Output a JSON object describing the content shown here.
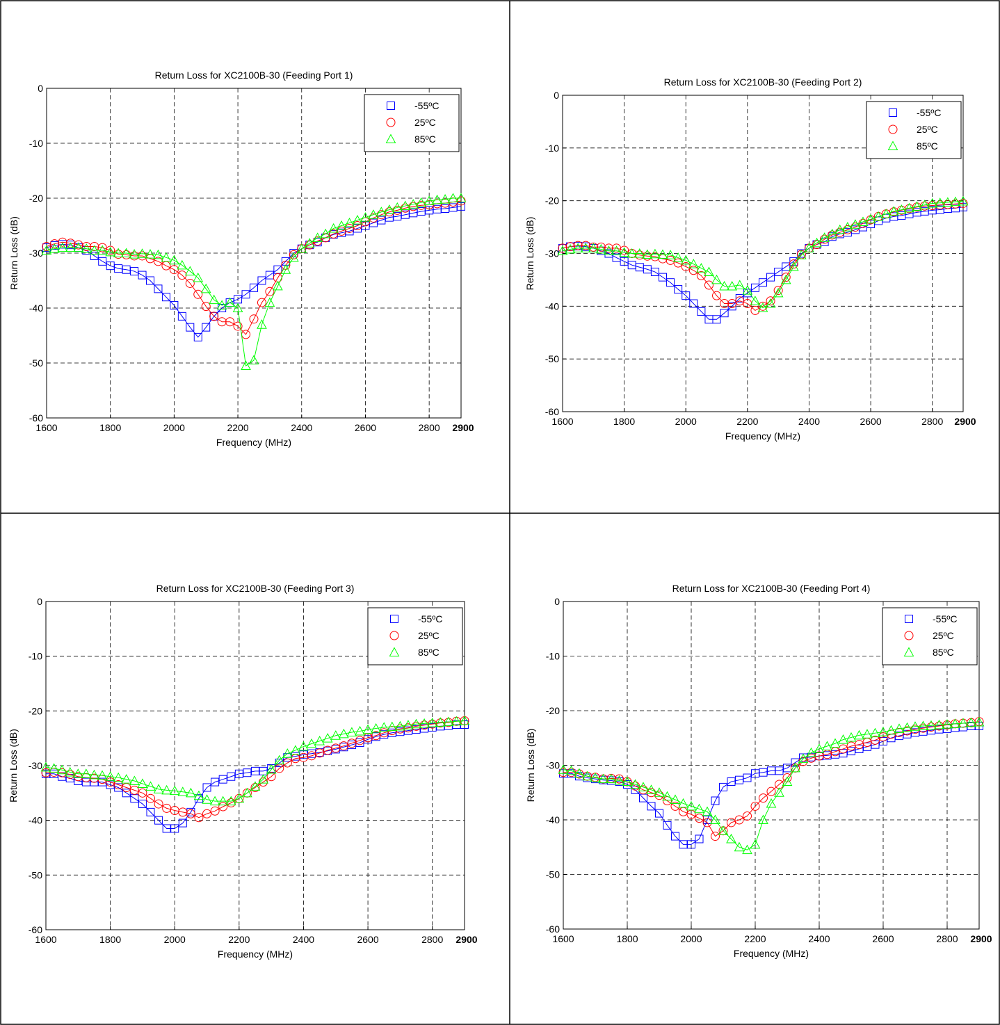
{
  "colors": {
    "series_neg55": "#0000ff",
    "series_25": "#ff0000",
    "series_85": "#00ff00",
    "grid": "#000000"
  },
  "chart_data": [
    {
      "type": "line",
      "title": "Return Loss for XC2100B-30 (Feeding Port 1)",
      "xlabel": "Frequency (MHz)",
      "ylabel": "Return Loss (dB)",
      "xlim": [
        1600,
        2900
      ],
      "ylim": [
        -60,
        0
      ],
      "xticks": [
        "1600",
        "1800",
        "2000",
        "2200",
        "2400",
        "2600",
        "2800",
        "2900"
      ],
      "yticks": [
        "0",
        "-10",
        "-20",
        "-30",
        "-40",
        "-50",
        "-60"
      ],
      "grid": true,
      "legend": "top-right",
      "x": [
        1600,
        1625,
        1650,
        1675,
        1700,
        1725,
        1750,
        1775,
        1800,
        1825,
        1850,
        1875,
        1900,
        1925,
        1950,
        1975,
        2000,
        2025,
        2050,
        2075,
        2100,
        2125,
        2150,
        2175,
        2200,
        2225,
        2250,
        2275,
        2300,
        2325,
        2350,
        2375,
        2400,
        2425,
        2450,
        2475,
        2500,
        2525,
        2550,
        2575,
        2600,
        2625,
        2650,
        2675,
        2700,
        2725,
        2750,
        2775,
        2800,
        2825,
        2850,
        2875,
        2900
      ],
      "series": [
        {
          "name": "-55ºC",
          "marker": "square",
          "color": "#0000ff",
          "values": [
            -29,
            -28.6,
            -28.4,
            -28.5,
            -29,
            -29.5,
            -30.5,
            -31.5,
            -32.3,
            -32.8,
            -33,
            -33.3,
            -34,
            -35,
            -36.5,
            -38,
            -39.5,
            -41.5,
            -43.5,
            -45.3,
            -43.5,
            -41.5,
            -40,
            -39,
            -38.4,
            -37.5,
            -36.3,
            -35,
            -34,
            -33,
            -31.5,
            -30,
            -29.2,
            -28.5,
            -28,
            -27.2,
            -26.6,
            -26.3,
            -26,
            -25.5,
            -25,
            -24.5,
            -24,
            -23.5,
            -23.3,
            -23,
            -22.7,
            -22.4,
            -22.2,
            -22,
            -21.9,
            -21.7,
            -21.5
          ]
        },
        {
          "name": "25ºC",
          "marker": "circle",
          "color": "#ff0000",
          "values": [
            -28.8,
            -28.3,
            -28,
            -28.2,
            -28.5,
            -28.8,
            -28.8,
            -29,
            -29.5,
            -30.2,
            -30.3,
            -30.5,
            -30.5,
            -31,
            -31.5,
            -32.3,
            -33,
            -34,
            -35.5,
            -37.5,
            -39.7,
            -41.5,
            -42.5,
            -42.5,
            -43.3,
            -44.8,
            -42,
            -39,
            -37,
            -34.5,
            -32.2,
            -30.3,
            -29.2,
            -28.5,
            -27.8,
            -27.2,
            -26.5,
            -26,
            -25.5,
            -25,
            -24.3,
            -23.6,
            -23,
            -22.5,
            -22.2,
            -21.8,
            -21.5,
            -21.3,
            -21.2,
            -21,
            -20.9,
            -20.7,
            -20.5
          ]
        },
        {
          "name": "85ºC",
          "marker": "triangle",
          "color": "#00ff00",
          "values": [
            -29.5,
            -29.2,
            -29,
            -29,
            -29,
            -29.2,
            -29.5,
            -29.5,
            -29.8,
            -30,
            -30,
            -30.2,
            -30.1,
            -30.2,
            -30.3,
            -30.8,
            -31.3,
            -32.2,
            -33.3,
            -34.5,
            -36.5,
            -38.5,
            -39.5,
            -39,
            -40,
            -50.5,
            -49.5,
            -43,
            -39,
            -36,
            -33,
            -30.8,
            -29.2,
            -28.2,
            -27.2,
            -26.5,
            -25.5,
            -25,
            -24.5,
            -24,
            -23.5,
            -23,
            -22.5,
            -22.1,
            -21.7,
            -21.4,
            -21.1,
            -20.8,
            -20.5,
            -20.3,
            -20.2,
            -20,
            -20
          ]
        }
      ]
    },
    {
      "type": "line",
      "title": "Return Loss for XC2100B-30 (Feeding Port 2)",
      "xlabel": "Frequency (MHz)",
      "ylabel": "Return Loss (dB)",
      "xlim": [
        1600,
        2900
      ],
      "ylim": [
        -60,
        0
      ],
      "xticks": [
        "1600",
        "1800",
        "2000",
        "2200",
        "2400",
        "2600",
        "2800",
        "2900"
      ],
      "yticks": [
        "0",
        "-10",
        "-20",
        "-30",
        "-40",
        "-50",
        "-60"
      ],
      "grid": true,
      "legend": "top-right",
      "x": [
        1600,
        1625,
        1650,
        1675,
        1700,
        1725,
        1750,
        1775,
        1800,
        1825,
        1850,
        1875,
        1900,
        1925,
        1950,
        1975,
        2000,
        2025,
        2050,
        2075,
        2100,
        2125,
        2150,
        2175,
        2200,
        2225,
        2250,
        2275,
        2300,
        2325,
        2350,
        2375,
        2400,
        2425,
        2450,
        2475,
        2500,
        2525,
        2550,
        2575,
        2600,
        2625,
        2650,
        2675,
        2700,
        2725,
        2750,
        2775,
        2800,
        2825,
        2850,
        2875,
        2900
      ],
      "series": [
        {
          "name": "-55ºC",
          "marker": "square",
          "color": "#0000ff",
          "values": [
            -29,
            -28.7,
            -28.6,
            -28.7,
            -29,
            -29.5,
            -30,
            -30.8,
            -31.5,
            -32.2,
            -32.6,
            -33,
            -33.5,
            -34.5,
            -35.5,
            -36.8,
            -38,
            -39.5,
            -41,
            -42.5,
            -42.5,
            -41.3,
            -40,
            -38.5,
            -37.5,
            -36.5,
            -35.5,
            -34.5,
            -33.5,
            -32.5,
            -31.5,
            -30,
            -29,
            -28.3,
            -27.8,
            -26.8,
            -26.3,
            -26,
            -25.5,
            -25,
            -24.4,
            -23.8,
            -23.3,
            -23,
            -22.8,
            -22.5,
            -22.2,
            -22,
            -21.8,
            -21.7,
            -21.5,
            -21.4,
            -21.2
          ]
        },
        {
          "name": "25ºC",
          "marker": "circle",
          "color": "#ff0000",
          "values": [
            -29,
            -28.7,
            -28.5,
            -28.5,
            -28.8,
            -28.8,
            -29,
            -29,
            -29.4,
            -30,
            -30.3,
            -30.5,
            -30.6,
            -31,
            -31.3,
            -31.8,
            -32.5,
            -33.2,
            -34.2,
            -36,
            -38,
            -39.5,
            -39.5,
            -39,
            -39.5,
            -40.8,
            -40,
            -39,
            -37,
            -34.5,
            -32,
            -30.2,
            -29,
            -28.3,
            -27.3,
            -26.5,
            -26,
            -25.5,
            -25,
            -24.3,
            -23.6,
            -23,
            -22.5,
            -22.1,
            -21.8,
            -21.5,
            -21.2,
            -21,
            -20.9,
            -20.8,
            -20.7,
            -20.6,
            -20.5
          ]
        },
        {
          "name": "85ºC",
          "marker": "triangle",
          "color": "#00ff00",
          "values": [
            -29.5,
            -29.2,
            -29,
            -29,
            -29,
            -29.2,
            -29.5,
            -29.5,
            -29.8,
            -30,
            -30,
            -30.2,
            -30.1,
            -30.2,
            -30.3,
            -30.8,
            -31.3,
            -32,
            -32.8,
            -33.5,
            -35,
            -36.2,
            -36.2,
            -36,
            -37,
            -39,
            -40.3,
            -39.5,
            -37.5,
            -35,
            -32.5,
            -30.3,
            -29,
            -28,
            -27,
            -26.3,
            -25.5,
            -25,
            -24.5,
            -24,
            -23.5,
            -23,
            -22.5,
            -22,
            -21.7,
            -21.4,
            -21.1,
            -20.8,
            -20.5,
            -20.4,
            -20.3,
            -20.2,
            -20.1
          ]
        }
      ]
    },
    {
      "type": "line",
      "title": "Return Loss for XC2100B-30 (Feeding Port 3)",
      "xlabel": "Frequency (MHz)",
      "ylabel": "Return Loss (dB)",
      "xlim": [
        1600,
        2900
      ],
      "ylim": [
        -60,
        0
      ],
      "xticks": [
        "1600",
        "1800",
        "2000",
        "2200",
        "2400",
        "2600",
        "2800",
        "2900"
      ],
      "yticks": [
        "0",
        "-10",
        "-20",
        "-30",
        "-40",
        "-50",
        "-60"
      ],
      "grid": true,
      "legend": "top-right",
      "x": [
        1600,
        1625,
        1650,
        1675,
        1700,
        1725,
        1750,
        1775,
        1800,
        1825,
        1850,
        1875,
        1900,
        1925,
        1950,
        1975,
        2000,
        2025,
        2050,
        2075,
        2100,
        2125,
        2150,
        2175,
        2200,
        2225,
        2250,
        2275,
        2300,
        2325,
        2350,
        2375,
        2400,
        2425,
        2450,
        2475,
        2500,
        2525,
        2550,
        2575,
        2600,
        2625,
        2650,
        2675,
        2700,
        2725,
        2750,
        2775,
        2800,
        2825,
        2850,
        2875,
        2900
      ],
      "series": [
        {
          "name": "-55ºC",
          "marker": "square",
          "color": "#0000ff",
          "values": [
            -31.5,
            -31.5,
            -32,
            -32.3,
            -32.8,
            -33,
            -33,
            -33,
            -33.5,
            -34,
            -35,
            -36,
            -37,
            -38.5,
            -40,
            -41.5,
            -41.5,
            -40.5,
            -38.5,
            -36,
            -34,
            -33,
            -32.5,
            -32,
            -31.5,
            -31.3,
            -31,
            -31,
            -30.5,
            -29.5,
            -28.5,
            -28.3,
            -28,
            -27.8,
            -27.6,
            -27.3,
            -27,
            -26.6,
            -26.2,
            -25.8,
            -25.2,
            -24.7,
            -24.3,
            -24,
            -23.8,
            -23.6,
            -23.4,
            -23.2,
            -23,
            -22.8,
            -22.7,
            -22.5,
            -22.5
          ]
        },
        {
          "name": "25ºC",
          "marker": "circle",
          "color": "#ff0000",
          "values": [
            -31.3,
            -31.2,
            -31.3,
            -31.6,
            -32,
            -32.2,
            -32.3,
            -32.5,
            -33,
            -33.5,
            -34,
            -34.5,
            -35,
            -36,
            -37,
            -37.8,
            -38.2,
            -38.5,
            -38.8,
            -39.5,
            -38.8,
            -38.3,
            -37.5,
            -36.8,
            -36,
            -35,
            -34,
            -33,
            -32,
            -30.5,
            -29.5,
            -28.7,
            -28.5,
            -28.2,
            -27.7,
            -27.2,
            -26.8,
            -26.4,
            -25.9,
            -25.4,
            -24.9,
            -24.5,
            -24,
            -23.6,
            -23.3,
            -23.1,
            -22.8,
            -22.6,
            -22.4,
            -22.2,
            -22.1,
            -21.9,
            -21.8
          ]
        },
        {
          "name": "85ºC",
          "marker": "triangle",
          "color": "#00ff00",
          "values": [
            -30.3,
            -30.5,
            -30.8,
            -31.2,
            -31.5,
            -31.5,
            -31.7,
            -31.8,
            -32,
            -32.2,
            -32.5,
            -32.8,
            -33.3,
            -33.8,
            -34.3,
            -34.5,
            -34.6,
            -34.8,
            -35,
            -35.5,
            -36.2,
            -36.5,
            -36.5,
            -36.5,
            -36,
            -35,
            -33.8,
            -32.5,
            -30.7,
            -29,
            -27.8,
            -27.2,
            -26.5,
            -26,
            -25.5,
            -25,
            -24.5,
            -24.2,
            -23.9,
            -23.7,
            -23.4,
            -23.2,
            -23,
            -22.9,
            -22.8,
            -22.6,
            -22.4,
            -22.3,
            -22.2,
            -22.1,
            -22,
            -21.9,
            -21.8
          ]
        }
      ]
    },
    {
      "type": "line",
      "title": "Return Loss for XC2100B-30 (Feeding Port 4)",
      "xlabel": "Frequency (MHz)",
      "ylabel": "Return Loss (dB)",
      "xlim": [
        1600,
        2900
      ],
      "ylim": [
        -60,
        0
      ],
      "xticks": [
        "1600",
        "1800",
        "2000",
        "2200",
        "2400",
        "2600",
        "2800",
        "2900"
      ],
      "yticks": [
        "0",
        "-10",
        "-20",
        "-30",
        "-40",
        "-50",
        "-60"
      ],
      "grid": true,
      "legend": "top-right",
      "x": [
        1600,
        1625,
        1650,
        1675,
        1700,
        1725,
        1750,
        1775,
        1800,
        1825,
        1850,
        1875,
        1900,
        1925,
        1950,
        1975,
        2000,
        2025,
        2050,
        2075,
        2100,
        2125,
        2150,
        2175,
        2200,
        2225,
        2250,
        2275,
        2300,
        2325,
        2350,
        2375,
        2400,
        2425,
        2450,
        2475,
        2500,
        2525,
        2550,
        2575,
        2600,
        2625,
        2650,
        2675,
        2700,
        2725,
        2750,
        2775,
        2800,
        2825,
        2850,
        2875,
        2900
      ],
      "series": [
        {
          "name": "-55ºC",
          "marker": "square",
          "color": "#0000ff",
          "values": [
            -31.5,
            -31.5,
            -32,
            -32.3,
            -32.5,
            -32.7,
            -32.8,
            -33,
            -33.5,
            -34.5,
            -36,
            -37.5,
            -38.8,
            -41,
            -43,
            -44.5,
            -44.5,
            -43.5,
            -40,
            -36.5,
            -34,
            -33,
            -32.7,
            -32.3,
            -31.5,
            -31.3,
            -31,
            -31,
            -30.5,
            -29.5,
            -28.6,
            -28.5,
            -28.3,
            -28.2,
            -28,
            -27.8,
            -27.4,
            -27,
            -26.6,
            -26.2,
            -25.6,
            -25,
            -24.6,
            -24.3,
            -24,
            -23.8,
            -23.6,
            -23.4,
            -23.3,
            -23.1,
            -23,
            -22.8,
            -22.8
          ]
        },
        {
          "name": "25ºC",
          "marker": "circle",
          "color": "#ff0000",
          "values": [
            -31.3,
            -31.3,
            -31.6,
            -32,
            -32.2,
            -32.5,
            -32.4,
            -32.5,
            -33,
            -33.8,
            -34.5,
            -35,
            -35.5,
            -36.5,
            -37.5,
            -38.5,
            -39,
            -39.7,
            -40.5,
            -43,
            -42,
            -40.5,
            -40,
            -39.3,
            -37.5,
            -36,
            -34.8,
            -33.5,
            -32.3,
            -30.5,
            -29.3,
            -28.7,
            -28.3,
            -28,
            -27.5,
            -27,
            -26.5,
            -26.2,
            -25.8,
            -25.4,
            -24.8,
            -24.3,
            -24,
            -23.7,
            -23.4,
            -23.2,
            -23,
            -22.8,
            -22.6,
            -22.4,
            -22.3,
            -22.2,
            -22
          ]
        },
        {
          "name": "85ºC",
          "marker": "triangle",
          "color": "#00ff00",
          "values": [
            -30.8,
            -31,
            -31.5,
            -32,
            -32.3,
            -32.5,
            -32.5,
            -32.8,
            -33,
            -33.5,
            -34,
            -34.5,
            -35,
            -35.7,
            -36.3,
            -37,
            -37.5,
            -38,
            -38.5,
            -40,
            -42,
            -43.5,
            -45,
            -45.5,
            -44.5,
            -40,
            -37,
            -35,
            -33,
            -30.5,
            -28.8,
            -27.7,
            -27,
            -26.5,
            -26,
            -25.3,
            -24.9,
            -24.5,
            -24.3,
            -24.1,
            -23.9,
            -23.6,
            -23.3,
            -23.1,
            -22.9,
            -22.8,
            -22.7,
            -22.6,
            -22.5,
            -22.4,
            -22.3,
            -22.2,
            -22.1
          ]
        }
      ]
    }
  ]
}
